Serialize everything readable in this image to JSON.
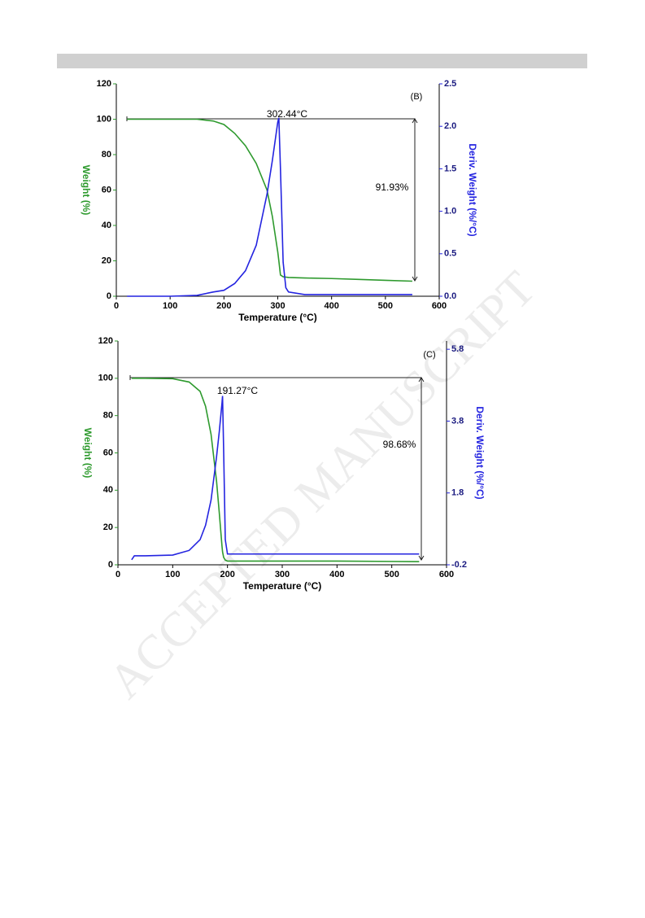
{
  "watermark": "ACCEPTED MANUSCRIPT",
  "chart_data": [
    {
      "type": "line",
      "title": "(B)",
      "x_label": "Temperature (°C)",
      "y_label": "Weight (%)",
      "y2_label": "Deriv. Weight (%/°C)",
      "annotations": [
        "302.44°C",
        "91.93%"
      ],
      "x": [
        20,
        100,
        150,
        180,
        200,
        220,
        240,
        260,
        280,
        290,
        300,
        302,
        305,
        310,
        315,
        320,
        350,
        400,
        450,
        500,
        550
      ],
      "series": [
        {
          "name": "Weight",
          "color": "#2e9a2e",
          "values": [
            100,
            100,
            100,
            99,
            97,
            92,
            85,
            75,
            60,
            45,
            25,
            20,
            12,
            11,
            10.8,
            10.6,
            10.3,
            10,
            9.5,
            9,
            8.5
          ]
        },
        {
          "name": "Deriv. Weight",
          "color": "#2424e0",
          "axis": "y2",
          "values": [
            0,
            0,
            0.01,
            0.05,
            0.07,
            0.15,
            0.3,
            0.6,
            1.2,
            1.6,
            2.05,
            2.1,
            1.5,
            0.4,
            0.1,
            0.05,
            0.02,
            0.02,
            0.02,
            0.02,
            0.02
          ]
        }
      ],
      "xlim": [
        0,
        600
      ],
      "xticks": [
        0,
        100,
        200,
        300,
        400,
        500,
        600
      ],
      "ylim": [
        0,
        120
      ],
      "yticks": [
        0,
        20,
        40,
        60,
        80,
        100,
        120
      ],
      "y2lim": [
        0,
        2.5
      ],
      "y2ticks": [
        {
          "value": 0,
          "label": "0.0"
        },
        0.5,
        {
          "value": 1,
          "label": "1.0"
        },
        1.5,
        {
          "value": 2,
          "label": "2.0"
        },
        2.5
      ]
    },
    {
      "type": "line",
      "title": "(C)",
      "x_label": "Temperature (°C)",
      "y_label": "Weight (%)",
      "y2_label": "Deriv. Weight (%/°C)",
      "annotations": [
        "191.27°C",
        "98.68%"
      ],
      "x": [
        25,
        30,
        50,
        100,
        130,
        150,
        160,
        170,
        180,
        185,
        190,
        191,
        193,
        196,
        200,
        250,
        300,
        400,
        500,
        550
      ],
      "series": [
        {
          "name": "Weight",
          "color": "#2e9a2e",
          "values": [
            100,
            100,
            100,
            99.8,
            98,
            93,
            85,
            70,
            45,
            28,
            10,
            7,
            4,
            2.5,
            2,
            2,
            2,
            2,
            1.8,
            1.7
          ]
        },
        {
          "name": "Deriv. Weight",
          "color": "#2424e0",
          "axis": "y2",
          "values": [
            -0.06,
            0.05,
            0.05,
            0.07,
            0.2,
            0.5,
            0.9,
            1.6,
            2.8,
            3.5,
            4.3,
            4.5,
            3,
            0.5,
            0.1,
            0.1,
            0.1,
            0.1,
            0.1,
            0.1
          ]
        }
      ],
      "xlim": [
        0,
        600
      ],
      "xticks": [
        0,
        100,
        200,
        300,
        400,
        500,
        600
      ],
      "ylim": [
        0,
        120
      ],
      "yticks": [
        0,
        20,
        40,
        60,
        80,
        100,
        120
      ],
      "y2lim": [
        -0.2,
        6.03
      ],
      "y2ticks": [
        -0.2,
        1.8,
        3.8,
        5.8
      ]
    }
  ]
}
